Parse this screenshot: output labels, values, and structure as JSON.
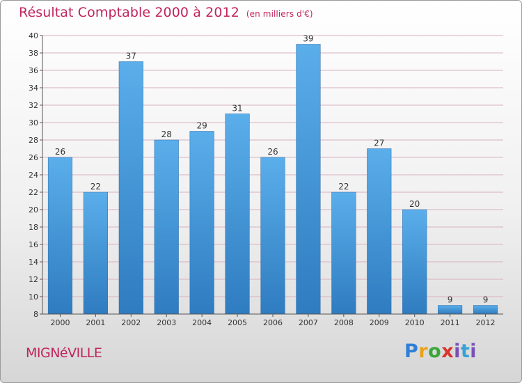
{
  "chart_data": {
    "type": "bar",
    "title": "Résultat Comptable 2000 à 2012",
    "subtitle": "(en milliers d'€)",
    "categories": [
      "2000",
      "2001",
      "2002",
      "2003",
      "2004",
      "2005",
      "2006",
      "2007",
      "2008",
      "2009",
      "2010",
      "2011",
      "2012"
    ],
    "values": [
      26,
      22,
      37,
      28,
      29,
      31,
      26,
      39,
      22,
      27,
      20,
      9,
      9
    ],
    "ylim": [
      8,
      40
    ],
    "yticks": [
      8,
      10,
      12,
      14,
      16,
      18,
      20,
      22,
      24,
      26,
      28,
      30,
      32,
      34,
      36,
      38,
      40
    ],
    "grid": true,
    "xlabel": "",
    "ylabel": "",
    "bar_color": "#4a9ee0",
    "grid_color": "#c0245c"
  },
  "commune": "MIGNéVILLE",
  "logo": {
    "p": "P",
    "r": "r",
    "o": "o",
    "x": "x",
    "i": "i",
    "t": "t",
    "i2": "i"
  }
}
